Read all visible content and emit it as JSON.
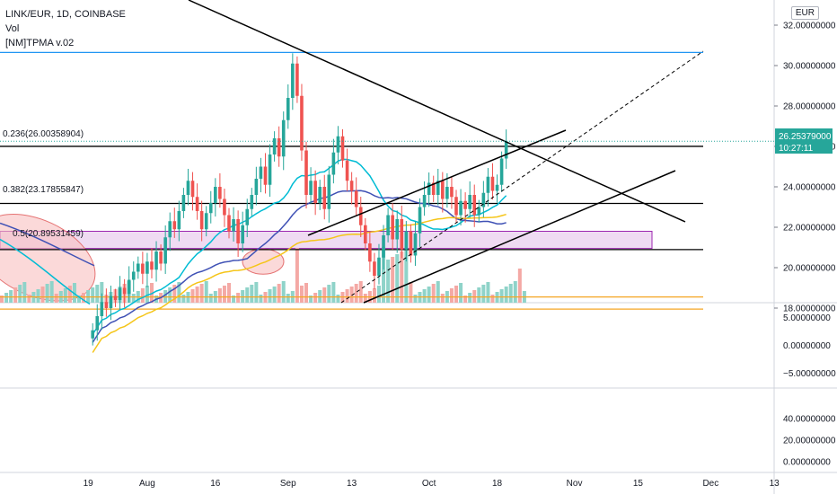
{
  "header": {
    "symbol": "LINK/EUR, 1D, COINBASE",
    "vol": "Vol",
    "indicator": "[NM]TPMA v.02"
  },
  "axis_unit": "EUR",
  "fib_labels": [
    "0.236(26.00358904)",
    "0.382(23.17855847)",
    "0.5(20.89531459)"
  ],
  "price_tag": {
    "value": "26.25379000",
    "countdown": "10:27:11"
  },
  "colors": {
    "up": "#26a69a",
    "down": "#ef5350",
    "vol_up": "#8fd3c9",
    "vol_down": "#f4a9a5",
    "ma_teal": "#00bcd4",
    "ma_blue": "#3f51b5",
    "ma_yellow": "#f5c518",
    "fib_orange": "#f5a623",
    "zone": "#e1bee7",
    "circle": "#f8c0c0"
  },
  "chart_data": [
    {
      "type": "candlestick",
      "title": "LINK/EUR, 1D, COINBASE",
      "ylim": [
        17.5,
        32.5
      ],
      "y_ticks": [
        "18.00000000",
        "20.00000000",
        "22.00000000",
        "24.00000000",
        "26.00000000",
        "28.00000000",
        "30.00000000",
        "32.00000000"
      ],
      "x_ticks": [
        "19",
        "Aug",
        "16",
        "Sep",
        "13",
        "Oct",
        "18",
        "Nov",
        "15",
        "Dec",
        "13"
      ],
      "x_ticks_day_index": [
        19,
        32,
        47,
        63,
        77,
        94,
        109,
        126,
        140,
        156,
        170
      ],
      "close_sequence_jul21_to_oct22": [
        16.9,
        17.6,
        18.3,
        18.0,
        18.6,
        18.4,
        19.0,
        18.7,
        19.4,
        19.8,
        20.2,
        19.7,
        20.3,
        19.9,
        20.8,
        20.2,
        21.5,
        22.3,
        21.9,
        22.8,
        23.6,
        24.3,
        23.5,
        22.8,
        21.9,
        22.7,
        23.2,
        24.0,
        23.4,
        22.6,
        21.8,
        22.4,
        21.2,
        22.1,
        22.9,
        23.6,
        24.4,
        25.0,
        24.1,
        25.6,
        26.4,
        25.5,
        27.3,
        28.4,
        30.1,
        28.5,
        25.8,
        23.6,
        24.3,
        23.2,
        24.0,
        22.9,
        24.6,
        25.7,
        26.5,
        25.3,
        24.3,
        23.8,
        23.0,
        22.1,
        21.2,
        20.3,
        19.6,
        20.5,
        21.6,
        22.6,
        21.4,
        22.4,
        20.9,
        21.8,
        20.6,
        21.7,
        23.0,
        23.6,
        24.2,
        23.6,
        24.3,
        23.4,
        24.0,
        23.5,
        22.6,
        23.3,
        22.9,
        23.6,
        22.6,
        23.0,
        23.7,
        24.5,
        23.8,
        24.1,
        25.4,
        26.25
      ],
      "annotations": [
        "0.236(26.00358904)",
        "0.382(23.17855847)",
        "0.5(20.89531459)"
      ],
      "last_price": "26.25379000"
    },
    {
      "type": "line",
      "panel": "oscillator",
      "y_ticks": [
        "5.00000000",
        "0.00000000",
        "−5.00000000"
      ],
      "ylim": [
        -7,
        7
      ]
    },
    {
      "type": "line",
      "panel": "oscillator-2",
      "y_ticks": [
        "40.00000000",
        "20.00000000",
        "0.00000000"
      ],
      "ylim": [
        -5,
        50
      ]
    }
  ]
}
